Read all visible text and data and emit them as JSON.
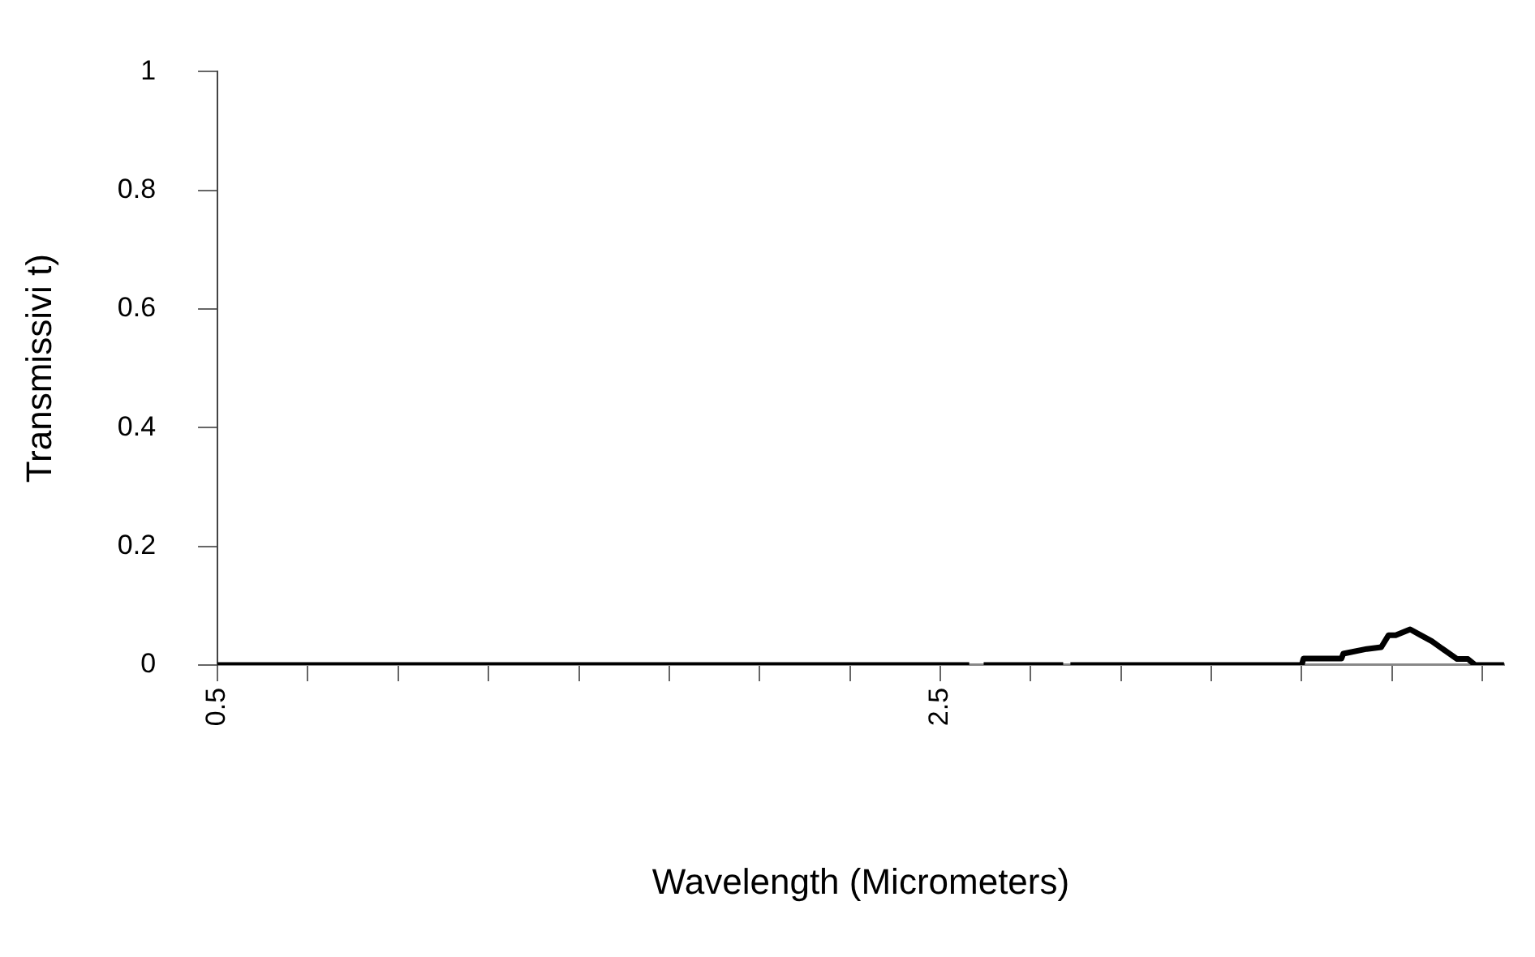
{
  "chart_data": {
    "type": "line",
    "xlabel": "Wavelength (Micrometers)",
    "ylabel": "Transmissivi t)",
    "x": [
      0.5,
      1.0,
      1.5,
      2.0,
      2.5,
      2.58,
      2.6,
      2.62,
      2.84,
      2.85,
      2.86,
      3.0,
      3.5,
      3.505,
      3.61,
      3.615,
      3.68,
      3.72,
      3.74,
      3.76,
      3.8,
      3.83,
      3.86,
      3.89,
      3.93,
      3.96,
      3.98,
      4.03,
      4.06
    ],
    "series": [
      {
        "color": "#000000",
        "values": [
          0,
          0,
          0,
          0,
          0,
          0,
          null,
          0,
          0,
          null,
          0,
          0,
          0,
          0.011,
          0.011,
          0.019,
          0.027,
          0.03,
          0.05,
          0.05,
          0.06,
          0.05,
          0.04,
          0.027,
          0.01,
          0.01,
          0,
          0,
          0
        ]
      }
    ],
    "xlim": [
      0.5,
      4.06
    ],
    "xticks": [
      {
        "value": 0.5,
        "label": "0.5"
      },
      {
        "value": 0.75,
        "label": null
      },
      {
        "value": 1.0,
        "label": null
      },
      {
        "value": 1.25,
        "label": null
      },
      {
        "value": 1.5,
        "label": null
      },
      {
        "value": 1.75,
        "label": null
      },
      {
        "value": 2.0,
        "label": null
      },
      {
        "value": 2.25,
        "label": null
      },
      {
        "value": 2.5,
        "label": "2.5"
      },
      {
        "value": 2.75,
        "label": null
      },
      {
        "value": 3.0,
        "label": null
      },
      {
        "value": 3.25,
        "label": null
      },
      {
        "value": 3.5,
        "label": null
      },
      {
        "value": 3.75,
        "label": null
      },
      {
        "value": 4.0,
        "label": null
      }
    ],
    "ylim": [
      0,
      1
    ],
    "yticks": [
      0,
      0.2,
      0.4,
      0.6,
      0.8,
      1
    ],
    "grid": false,
    "legend": false,
    "marker": "none",
    "line_style": "solid"
  }
}
